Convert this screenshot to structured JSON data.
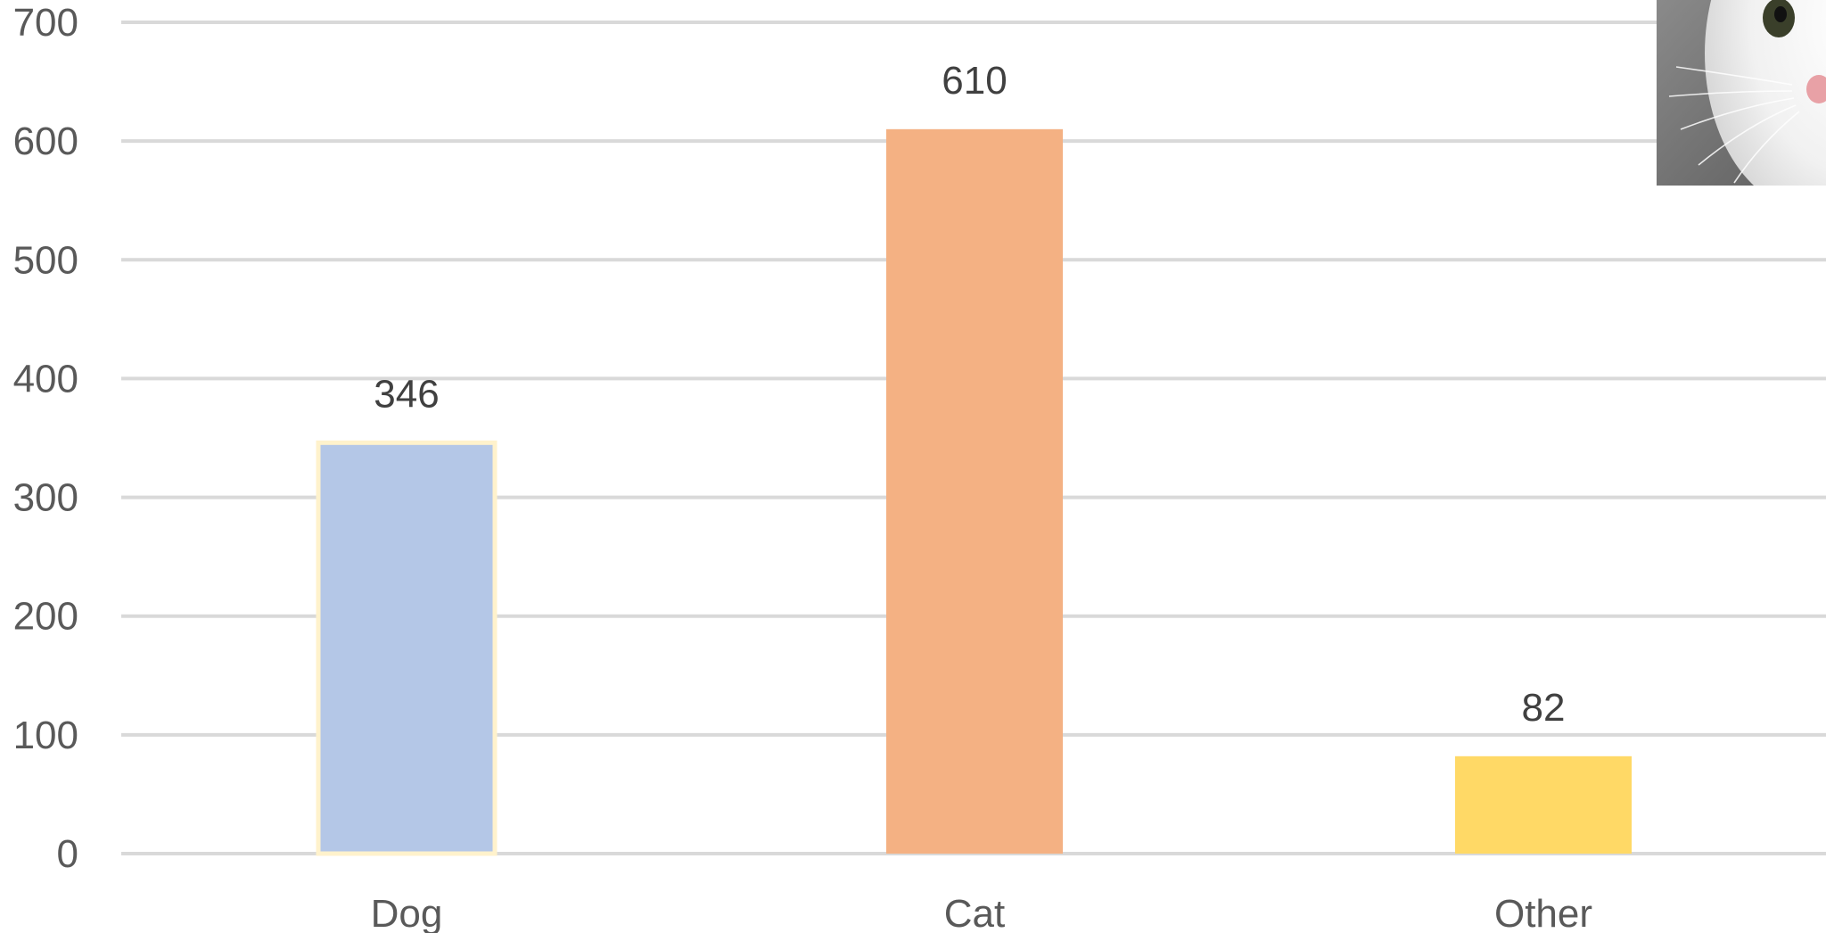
{
  "chart_data": {
    "type": "bar",
    "title": "",
    "xlabel": "",
    "ylabel": "",
    "categories": [
      "Dog",
      "Cat",
      "Other"
    ],
    "values": [
      346,
      610,
      82
    ],
    "data_labels": [
      "346",
      "610",
      "82"
    ],
    "bar_colors": [
      "#b4c7e7",
      "#f4b183",
      "#ffd966"
    ],
    "ylim": [
      0,
      700
    ],
    "yticks": [
      0,
      100,
      200,
      300,
      400,
      500,
      600,
      700
    ],
    "ytick_labels": [
      "0",
      "100",
      "200",
      "300",
      "400",
      "500",
      "600",
      "700"
    ],
    "grid": true,
    "legend": "none",
    "gridline_color": "#d9d9d9",
    "label_color": "#595959"
  },
  "decoration": {
    "icon": "cat-photo-icon"
  }
}
